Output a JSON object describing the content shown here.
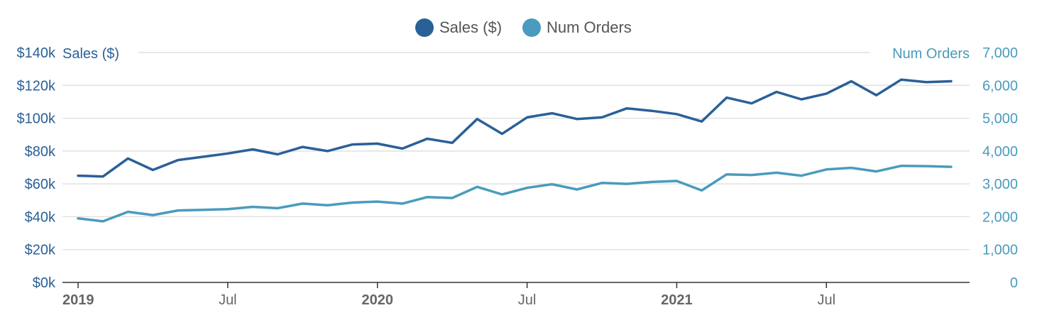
{
  "colors": {
    "sales": "#2a6098",
    "orders": "#4a9bbd",
    "grid": "#e1e1e1",
    "axis": "#333333"
  },
  "chart_data": {
    "type": "line",
    "legend_position": "top-center",
    "grid": true,
    "x": [
      "2019-01",
      "2019-02",
      "2019-03",
      "2019-04",
      "2019-05",
      "2019-06",
      "2019-07",
      "2019-08",
      "2019-09",
      "2019-10",
      "2019-11",
      "2019-12",
      "2020-01",
      "2020-02",
      "2020-03",
      "2020-04",
      "2020-05",
      "2020-06",
      "2020-07",
      "2020-08",
      "2020-09",
      "2020-10",
      "2020-11",
      "2020-12",
      "2021-01",
      "2021-02",
      "2021-03",
      "2021-04",
      "2021-05",
      "2021-06",
      "2021-07",
      "2021-08",
      "2021-09",
      "2021-10",
      "2021-11",
      "2021-12"
    ],
    "x_tick_labels": [
      {
        "label": "2019",
        "x": "2019-01",
        "bold": true
      },
      {
        "label": "Jul",
        "x": "2019-07",
        "bold": false
      },
      {
        "label": "2020",
        "x": "2020-01",
        "bold": true
      },
      {
        "label": "Jul",
        "x": "2020-07",
        "bold": false
      },
      {
        "label": "2021",
        "x": "2021-01",
        "bold": true
      },
      {
        "label": "Jul",
        "x": "2021-07",
        "bold": false
      }
    ],
    "y_left": {
      "title": "Sales ($)",
      "range": [
        0,
        140000
      ],
      "ticks": [
        0,
        20000,
        40000,
        60000,
        80000,
        100000,
        120000,
        140000
      ],
      "tick_labels": [
        "$0k",
        "$20k",
        "$40k",
        "$60k",
        "$80k",
        "$100k",
        "$120k",
        "$140k"
      ]
    },
    "y_right": {
      "title": "Num Orders",
      "range": [
        0,
        7000
      ],
      "ticks": [
        0,
        1000,
        2000,
        3000,
        4000,
        5000,
        6000,
        7000
      ],
      "tick_labels": [
        "0",
        "1,000",
        "2,000",
        "3,000",
        "4,000",
        "5,000",
        "6,000",
        "7,000"
      ]
    },
    "series": [
      {
        "name": "Sales ($)",
        "axis": "left",
        "values": [
          65000,
          64500,
          75500,
          68500,
          74500,
          76500,
          78500,
          81000,
          78000,
          82500,
          80000,
          84000,
          84500,
          81500,
          87500,
          85000,
          99500,
          90500,
          100500,
          103000,
          99500,
          100500,
          106000,
          104500,
          102500,
          98000,
          112500,
          109000,
          116000,
          111500,
          115000,
          122500,
          114000,
          123500,
          122000,
          122500
        ]
      },
      {
        "name": "Num Orders",
        "axis": "right",
        "values": [
          1950,
          1860,
          2150,
          2050,
          2190,
          2210,
          2230,
          2300,
          2260,
          2400,
          2350,
          2430,
          2460,
          2400,
          2600,
          2570,
          2910,
          2680,
          2880,
          2990,
          2830,
          3030,
          3000,
          3060,
          3090,
          2800,
          3290,
          3270,
          3340,
          3250,
          3440,
          3490,
          3380,
          3550,
          3540,
          3520
        ]
      }
    ]
  }
}
